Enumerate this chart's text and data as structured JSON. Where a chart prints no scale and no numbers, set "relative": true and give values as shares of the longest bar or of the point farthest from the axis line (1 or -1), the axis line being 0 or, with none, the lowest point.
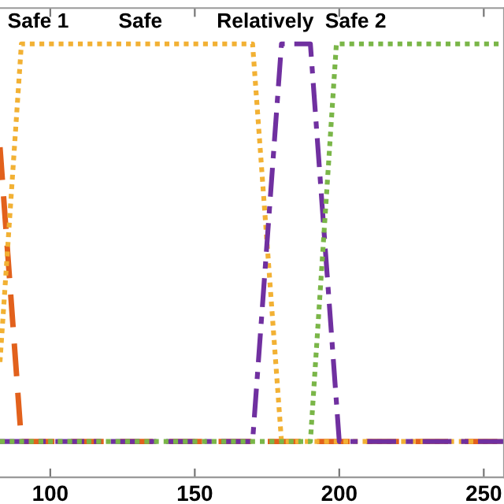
{
  "chart_data": {
    "type": "line",
    "relative": true,
    "xlim": [
      82.6,
      257
    ],
    "xticks": [
      100,
      150,
      200,
      250
    ],
    "grid": false,
    "legend": false,
    "annotations": [
      "Safe 1",
      "Safe",
      "Relatively",
      "Safe 2"
    ],
    "series": [
      {
        "color": "#e2611c",
        "line_style": "dashed",
        "x": [
          82.6,
          90,
          257
        ],
        "values": [
          0.74,
          0,
          0
        ]
      },
      {
        "color": "#f2b134",
        "line_style": "dotted",
        "x": [
          82.6,
          90,
          170,
          180,
          257
        ],
        "values": [
          0.2,
          1,
          1,
          0,
          0
        ]
      },
      {
        "color": "#7030a0",
        "line_style": "dashdot",
        "x": [
          82.6,
          170,
          180,
          190,
          200,
          257
        ],
        "values": [
          0,
          0,
          1,
          1,
          0,
          0
        ]
      },
      {
        "color": "#7ab648",
        "line_style": "dotted",
        "x": [
          82.6,
          190,
          199,
          257
        ],
        "values": [
          0,
          0,
          1,
          1
        ]
      }
    ]
  }
}
